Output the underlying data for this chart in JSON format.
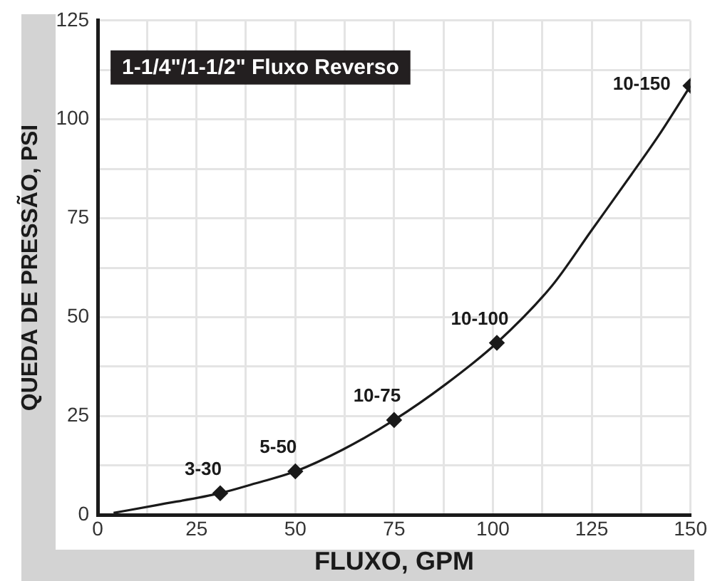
{
  "chart_data": {
    "type": "line",
    "title": "1-1/4\"/1-1/2\" Fluxo Reverso",
    "xlabel": "FLUXO, GPM",
    "ylabel": "QUEDA DE PRESSÃO, PSI",
    "xlim": [
      0,
      150
    ],
    "ylim": [
      0,
      125
    ],
    "xticks": [
      0,
      {
        "value": 12.5,
        "label": null
      },
      25,
      {
        "value": 37.5,
        "label": null
      },
      50,
      {
        "value": 62.5,
        "label": null
      },
      75,
      {
        "value": 87.5,
        "label": null
      },
      100,
      {
        "value": 112.5,
        "label": null
      },
      125,
      {
        "value": 137.5,
        "label": null
      },
      150
    ],
    "yticks": [
      0,
      {
        "value": 12.5,
        "label": null
      },
      25,
      {
        "value": 37.5,
        "label": null
      },
      50,
      {
        "value": 62.5,
        "label": null
      },
      75,
      {
        "value": 87.5,
        "label": null
      },
      100,
      {
        "value": 112.5,
        "label": null
      },
      125
    ],
    "grid": true,
    "legend": false,
    "series": [
      {
        "type": "line",
        "color": "#1a1a1a",
        "marker": "none",
        "line_style": "solid",
        "x": [
          4,
          15,
          31,
          40,
          50,
          62,
          75,
          88,
          101,
          115,
          125,
          135,
          142,
          150
        ],
        "values": [
          0.5,
          2.5,
          5.5,
          8,
          11,
          16.5,
          24,
          33,
          43.5,
          58,
          72,
          86,
          96,
          108.5
        ]
      },
      {
        "type": "scatter",
        "color": "#1a1a1a",
        "marker": "diamond",
        "x": [
          31,
          50,
          75,
          101,
          150
        ],
        "values": [
          5.5,
          11,
          24,
          43.5,
          108.5
        ],
        "value_labels": [
          "3-30",
          "5-50",
          "10-75",
          "10-100",
          "10-150"
        ]
      }
    ]
  }
}
